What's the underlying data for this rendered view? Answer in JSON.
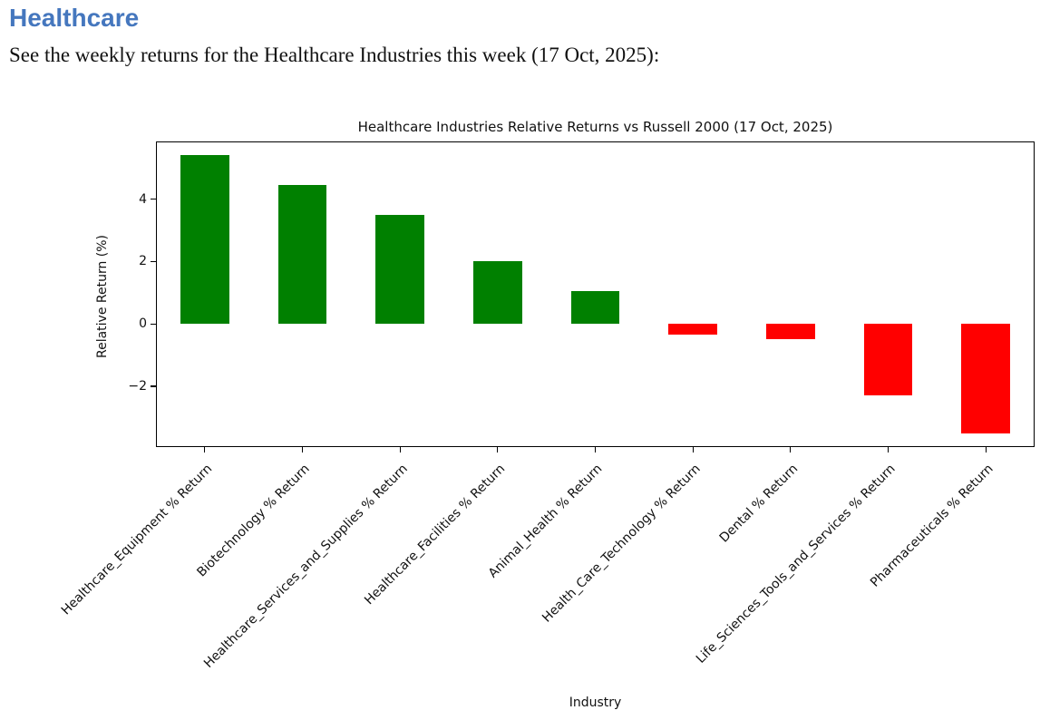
{
  "page": {
    "heading": "Healthcare",
    "heading_color": "#4577be",
    "intro": "See the weekly returns for the Healthcare Industries this week (17 Oct, 2025):"
  },
  "chart_data": {
    "type": "bar",
    "title": "Healthcare Industries Relative Returns vs Russell 2000 (17 Oct, 2025)",
    "xlabel": "Industry",
    "ylabel": "Relative Return (%)",
    "categories": [
      "Healthcare_Equipment % Return",
      "Biotechnology % Return",
      "Healthcare_Services_and_Supplies % Return",
      "Healthcare_Facilities % Return",
      "Animal_Health % Return",
      "Health_Care_Technology % Return",
      "Dental % Return",
      "Life_Sciences_Tools_and_Services % Return",
      "Pharmaceuticals % Return"
    ],
    "values": [
      5.4,
      4.45,
      3.5,
      2.0,
      1.05,
      -0.35,
      -0.5,
      -2.3,
      -3.5
    ],
    "positive_color": "#008000",
    "negative_color": "#ff0000",
    "y_ticks": [
      -2,
      0,
      2,
      4
    ],
    "ylim": [
      -3.95,
      5.85
    ],
    "bar_width_frac": 0.5,
    "grid": false,
    "legend": null
  }
}
